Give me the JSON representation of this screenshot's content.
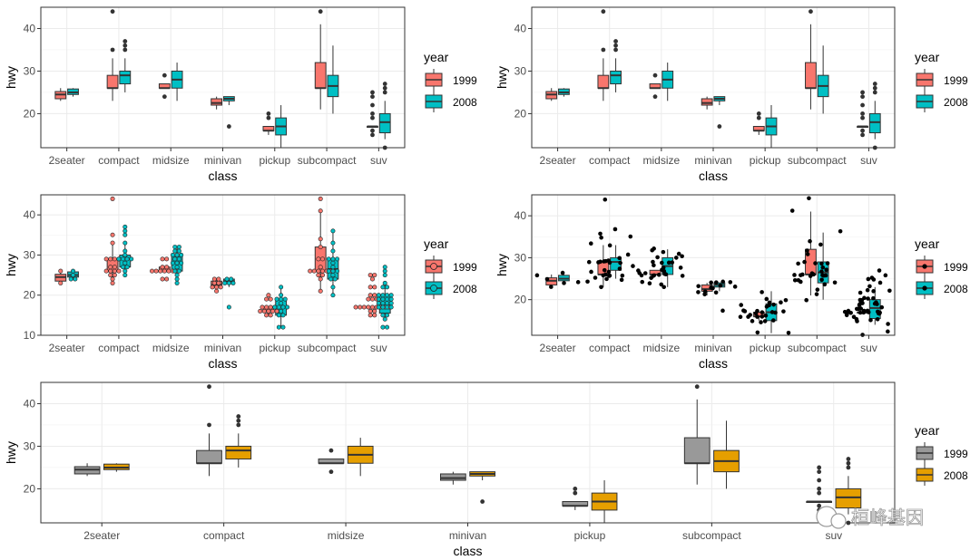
{
  "colors": {
    "y1999": "#F8766D",
    "y2008": "#00BFC4",
    "grey1999": "#999999",
    "gold2008": "#E69F00"
  },
  "chart_data": [
    {
      "id": "p1",
      "type": "boxplot",
      "categories": [
        "2seater",
        "compact",
        "midsize",
        "minivan",
        "pickup",
        "subcompact",
        "suv"
      ],
      "xlabel": "class",
      "ylabel": "hwy",
      "yticks": [
        20,
        30,
        40
      ],
      "ytick_labels": [
        "20",
        "30",
        "40"
      ],
      "ylim": [
        12,
        45
      ],
      "legend": {
        "title": "year",
        "position": "right",
        "entries": [
          "1999",
          "2008"
        ]
      },
      "series": [
        {
          "name": "1999",
          "boxes": [
            {
              "q1": 23.5,
              "med": 24.5,
              "q3": 25.2,
              "lo": 23,
              "hi": 26,
              "out": []
            },
            {
              "q1": 26,
              "med": 26,
              "q3": 29,
              "lo": 23,
              "hi": 33,
              "out": [
                35,
                44
              ]
            },
            {
              "q1": 26,
              "med": 26,
              "q3": 27,
              "lo": 26,
              "hi": 27,
              "out": [
                24,
                29
              ]
            },
            {
              "q1": 22,
              "med": 22.5,
              "q3": 23.5,
              "lo": 21,
              "hi": 24,
              "out": []
            },
            {
              "q1": 16,
              "med": 16,
              "q3": 17,
              "lo": 15,
              "hi": 17,
              "out": [
                19,
                20
              ]
            },
            {
              "q1": 26,
              "med": 26,
              "q3": 32,
              "lo": 21,
              "hi": 41,
              "out": [
                44
              ]
            },
            {
              "q1": 17,
              "med": 17,
              "q3": 17,
              "lo": 17,
              "hi": 17,
              "out": [
                15,
                16,
                19,
                20,
                22,
                24,
                25
              ]
            }
          ]
        },
        {
          "name": "2008",
          "boxes": [
            {
              "q1": 24.5,
              "med": 25,
              "q3": 25.8,
              "lo": 24,
              "hi": 26,
              "out": []
            },
            {
              "q1": 27,
              "med": 29,
              "q3": 30,
              "lo": 25,
              "hi": 33,
              "out": [
                35,
                36,
                37
              ]
            },
            {
              "q1": 26,
              "med": 28,
              "q3": 30,
              "lo": 23,
              "hi": 32,
              "out": []
            },
            {
              "q1": 23,
              "med": 23.5,
              "q3": 24,
              "lo": 22,
              "hi": 24,
              "out": [
                17
              ]
            },
            {
              "q1": 15,
              "med": 17,
              "q3": 19,
              "lo": 12,
              "hi": 22,
              "out": []
            },
            {
              "q1": 24,
              "med": 26.5,
              "q3": 29,
              "lo": 20,
              "hi": 36,
              "out": []
            },
            {
              "q1": 15.5,
              "med": 18,
              "q3": 20,
              "lo": 14,
              "hi": 23,
              "out": [
                12,
                25,
                26,
                27
              ]
            }
          ]
        }
      ]
    },
    {
      "id": "p2",
      "type": "boxplot",
      "categories": [
        "2seater",
        "compact",
        "midsize",
        "minivan",
        "pickup",
        "subcompact",
        "suv"
      ],
      "xlabel": "class",
      "ylabel": "hwy",
      "yticks": [
        20,
        30,
        40
      ],
      "ytick_labels": [
        "20",
        "30",
        "40"
      ],
      "ylim": [
        12,
        45
      ],
      "legend": {
        "title": "year",
        "position": "right",
        "entries": [
          "1999",
          "2008"
        ]
      },
      "series_ref": "p1"
    },
    {
      "id": "p3",
      "type": "boxplot+dotplot",
      "categories": [
        "2seater",
        "compact",
        "midsize",
        "minivan",
        "pickup",
        "subcompact",
        "suv"
      ],
      "xlabel": "class",
      "ylabel": "hwy",
      "yticks": [
        10,
        20,
        30,
        40
      ],
      "ytick_labels": [
        "10",
        "20",
        "30",
        "40"
      ],
      "ylim": [
        10,
        45
      ],
      "legend": {
        "title": "year",
        "position": "right",
        "entries": [
          "1999",
          "2008"
        ]
      },
      "series_ref": "p1",
      "dots": {
        "1999": [
          [
            23,
            26
          ],
          [
            23,
            24,
            25,
            25,
            26,
            26,
            26,
            26,
            27,
            27,
            29,
            29,
            29,
            29,
            33,
            35,
            44
          ],
          [
            24,
            24,
            26,
            26,
            26,
            26,
            26,
            26,
            26,
            27,
            27,
            29,
            29
          ],
          [
            21,
            22,
            22,
            22,
            23,
            23,
            24,
            24
          ],
          [
            15,
            15,
            16,
            16,
            16,
            16,
            16,
            17,
            17,
            17,
            17,
            19,
            19,
            20
          ],
          [
            21,
            24,
            25,
            25,
            26,
            26,
            26,
            26,
            26,
            26,
            27,
            29,
            29,
            32,
            34,
            41,
            44
          ],
          [
            15,
            15,
            16,
            16,
            17,
            17,
            17,
            17,
            17,
            17,
            17,
            17,
            17,
            19,
            19,
            19,
            20,
            20,
            22,
            22,
            24,
            25,
            25
          ]
        ],
        "2008": [
          [
            24,
            24,
            25,
            26
          ],
          [
            25,
            26,
            27,
            27,
            28,
            29,
            29,
            29,
            29,
            30,
            31,
            33,
            35,
            36,
            37
          ],
          [
            23,
            24,
            25,
            26,
            26,
            27,
            28,
            28,
            28,
            29,
            29,
            30,
            30,
            30,
            31,
            31,
            32,
            32
          ],
          [
            17,
            23,
            23,
            23,
            24,
            24
          ],
          [
            12,
            12,
            15,
            15,
            16,
            17,
            17,
            17,
            17,
            18,
            19,
            19,
            19,
            20,
            22
          ],
          [
            20,
            22,
            24,
            24,
            25,
            26,
            26,
            26,
            27,
            28,
            29,
            29,
            29,
            31,
            33,
            36
          ],
          [
            12,
            12,
            14,
            15,
            15,
            17,
            17,
            17,
            17,
            18,
            18,
            18,
            18,
            19,
            19,
            19,
            19,
            20,
            20,
            20,
            20,
            22,
            22,
            23,
            25,
            26,
            27
          ]
        ]
      }
    },
    {
      "id": "p4",
      "type": "boxplot+jitter",
      "categories": [
        "2seater",
        "compact",
        "midsize",
        "minivan",
        "pickup",
        "subcompact",
        "suv"
      ],
      "xlabel": "class",
      "ylabel": "hwy",
      "yticks": [
        20,
        30,
        40
      ],
      "ytick_labels": [
        "20",
        "30",
        "40"
      ],
      "ylim": [
        11.5,
        45
      ],
      "legend": {
        "title": "year",
        "position": "right",
        "entries": [
          "1999",
          "2008"
        ]
      },
      "series_ref": "p1",
      "points_ref": "p3"
    },
    {
      "id": "p5",
      "type": "boxplot",
      "categories": [
        "2seater",
        "compact",
        "midsize",
        "minivan",
        "pickup",
        "subcompact",
        "suv"
      ],
      "xlabel": "class",
      "ylabel": "hwy",
      "yticks": [
        20,
        30,
        40
      ],
      "ytick_labels": [
        "20",
        "30",
        "40"
      ],
      "ylim": [
        12,
        45
      ],
      "legend": {
        "title": "year",
        "position": "right",
        "entries": [
          "1999",
          "2008"
        ]
      },
      "series_ref": "p1",
      "palette": [
        "#999999",
        "#E69F00"
      ]
    }
  ],
  "watermark": {
    "text": "桓峰基因"
  }
}
